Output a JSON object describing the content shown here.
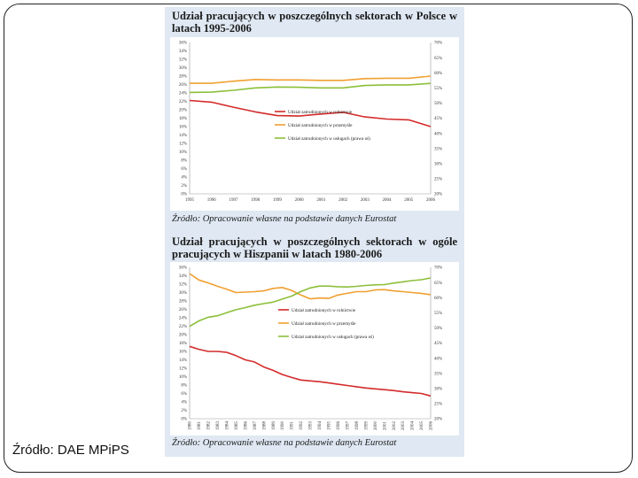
{
  "page": {
    "source_note": "Źródło: DAE MPiPS"
  },
  "chart_data": [
    {
      "type": "line",
      "title": "Udział pracujących w poszczególnych sektorach w Polsce w latach 1995-2006",
      "source": "Źródło: Opracowanie własne na podstawie danych Eurostat",
      "x": [
        1995,
        1996,
        1997,
        1998,
        1999,
        2000,
        2001,
        2002,
        2003,
        2004,
        2005,
        2006
      ],
      "x_tick_labels": [
        "1995",
        "1996",
        "1997",
        "1998",
        "1999",
        "2000",
        "2001",
        "2002",
        "2003",
        "2004",
        "2005",
        "2006"
      ],
      "y_left_ticks": [
        "0%",
        "2%",
        "4%",
        "6%",
        "8%",
        "10%",
        "12%",
        "14%",
        "16%",
        "18%",
        "20%",
        "22%",
        "24%",
        "26%",
        "28%",
        "30%",
        "32%",
        "34%",
        "36%"
      ],
      "y_right_ticks": [
        "20%",
        "25%",
        "30%",
        "35%",
        "40%",
        "45%",
        "50%",
        "55%",
        "60%",
        "65%",
        "70%"
      ],
      "ylim_left": [
        0,
        36
      ],
      "ylim_right": [
        20,
        70
      ],
      "legend_position": "center-right",
      "grid": false,
      "series": [
        {
          "name": "Udział zatrudnionych w rolnictwie",
          "axis": "left",
          "color": "#d42a2a",
          "values": [
            22.2,
            21.8,
            20.6,
            19.5,
            18.6,
            18.5,
            19.0,
            19.4,
            18.3,
            17.8,
            17.6,
            16.0
          ]
        },
        {
          "name": "Udział zatrudnionych w przemyśle",
          "axis": "left",
          "color": "#f0a030",
          "values": [
            26.3,
            26.3,
            26.8,
            27.2,
            27.1,
            27.1,
            27.0,
            27.0,
            27.4,
            27.5,
            27.5,
            28.0
          ]
        },
        {
          "name": "Udział zatrudnionych w usługach (prawa oś)",
          "axis": "right",
          "color": "#8cbf3a",
          "values": [
            53.5,
            53.6,
            54.2,
            55.0,
            55.3,
            55.2,
            55.0,
            55.0,
            55.8,
            56.0,
            56.0,
            56.5
          ]
        }
      ]
    },
    {
      "type": "line",
      "title": "Udział pracujących w poszczególnych sektorach w ogóle pracujących w Hiszpanii w latach 1980-2006",
      "source": "Źródło: Opracowanie własne na podstawie danych Eurostat",
      "x": [
        1980,
        1981,
        1982,
        1983,
        1984,
        1985,
        1986,
        1987,
        1988,
        1989,
        1990,
        1991,
        1992,
        1993,
        1994,
        1995,
        1996,
        1997,
        1998,
        1999,
        2000,
        2001,
        2002,
        2003,
        2004,
        2005,
        2006
      ],
      "x_tick_labels": [
        "1980",
        "1981",
        "1982",
        "1983",
        "1984",
        "1985",
        "1986",
        "1987",
        "1988",
        "1989",
        "1990",
        "1991",
        "1992",
        "1993",
        "1994",
        "1995",
        "1996",
        "1997",
        "1998",
        "1999",
        "2000",
        "2001",
        "2002",
        "2003",
        "2004",
        "2005",
        "2006"
      ],
      "y_left_ticks": [
        "0%",
        "2%",
        "4%",
        "6%",
        "8%",
        "10%",
        "12%",
        "14%",
        "16%",
        "18%",
        "20%",
        "22%",
        "24%",
        "26%",
        "28%",
        "30%",
        "32%",
        "34%",
        "36%"
      ],
      "y_right_ticks": [
        "20%",
        "25%",
        "30%",
        "35%",
        "40%",
        "45%",
        "50%",
        "55%",
        "60%",
        "65%",
        "70%"
      ],
      "ylim_left": [
        0,
        36
      ],
      "ylim_right": [
        20,
        70
      ],
      "legend_position": "center",
      "grid": false,
      "series": [
        {
          "name": "Udział zatrudnionych w rolnictwie",
          "axis": "left",
          "color": "#d42a2a",
          "values": [
            17.2,
            16.5,
            16.0,
            16.0,
            15.8,
            15.0,
            14.0,
            13.5,
            12.3,
            11.5,
            10.5,
            9.8,
            9.2,
            9.0,
            8.8,
            8.5,
            8.2,
            7.9,
            7.6,
            7.3,
            7.1,
            6.9,
            6.7,
            6.4,
            6.2,
            6.0,
            5.4
          ]
        },
        {
          "name": "Udział zatrudnionych w przemyśle",
          "axis": "left",
          "color": "#f0a030",
          "values": [
            34.5,
            33.0,
            32.3,
            31.5,
            30.8,
            30.0,
            30.1,
            30.2,
            30.4,
            31.0,
            31.2,
            30.5,
            29.4,
            28.5,
            28.7,
            28.6,
            29.4,
            29.8,
            30.2,
            30.2,
            30.6,
            30.7,
            30.4,
            30.2,
            30.0,
            29.8,
            29.5
          ]
        },
        {
          "name": "Udział zatrudnionych w usługach (prawa oś)",
          "axis": "right",
          "color": "#8cbf3a",
          "values": [
            50.5,
            52.3,
            53.5,
            54.0,
            55.0,
            56.0,
            56.7,
            57.5,
            58.0,
            58.5,
            59.5,
            60.5,
            62.0,
            63.2,
            63.8,
            63.8,
            63.6,
            63.5,
            63.7,
            64.0,
            64.2,
            64.3,
            64.8,
            65.2,
            65.6,
            65.9,
            66.5
          ]
        }
      ]
    }
  ]
}
